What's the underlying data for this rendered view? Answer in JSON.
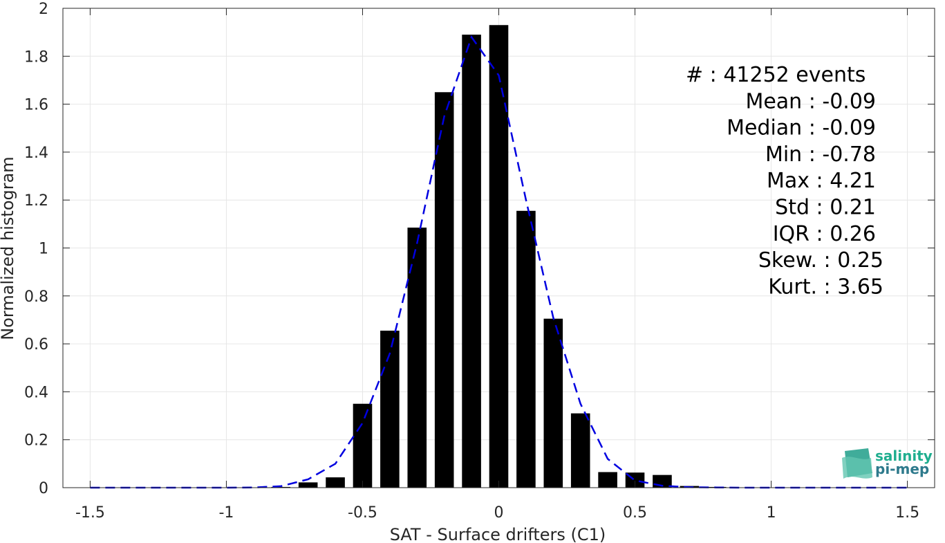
{
  "chart_data": {
    "type": "bar",
    "xlabel": "SAT - Surface drifters (C1)",
    "ylabel": "Normalized histogram",
    "xlim": [
      -1.6,
      1.6
    ],
    "ylim": [
      0,
      2
    ],
    "xticks": [
      -1.5,
      -1,
      -0.5,
      0,
      0.5,
      1,
      1.5
    ],
    "xtick_labels": [
      "-1.5",
      "-1",
      "-0.5",
      "0",
      "0.5",
      "1",
      "1.5"
    ],
    "yticks": [
      0,
      0.2,
      0.4,
      0.6,
      0.8,
      1,
      1.2,
      1.4,
      1.6,
      1.8,
      2
    ],
    "ytick_labels": [
      "0",
      "0.2",
      "0.4",
      "0.6",
      "0.8",
      "1",
      "1.2",
      "1.4",
      "1.6",
      "1.8",
      "2"
    ],
    "grid": true,
    "bar_width": 0.07,
    "bars": {
      "x": [
        -1.5,
        -1.4,
        -1.3,
        -1.2,
        -1.1,
        -1.0,
        -0.9,
        -0.8,
        -0.7,
        -0.6,
        -0.5,
        -0.4,
        -0.3,
        -0.2,
        -0.1,
        0.0,
        0.1,
        0.2,
        0.3,
        0.4,
        0.5,
        0.6,
        0.7,
        0.8,
        0.9,
        1.0,
        1.1,
        1.2,
        1.3,
        1.4,
        1.5
      ],
      "values": [
        0,
        0,
        0,
        0,
        0,
        0,
        0,
        0.003,
        0.022,
        0.043,
        0.35,
        0.655,
        1.085,
        1.65,
        1.89,
        1.93,
        1.155,
        0.705,
        0.31,
        0.065,
        0.063,
        0.053,
        0.007,
        0.003,
        0.001,
        0,
        0,
        0,
        0,
        0,
        0
      ],
      "color": "#000000"
    },
    "fit": {
      "style": "dashed",
      "color": "#0000e0",
      "x": [
        -1.5,
        -1.4,
        -1.3,
        -1.2,
        -1.1,
        -1.0,
        -0.9,
        -0.8,
        -0.7,
        -0.6,
        -0.5,
        -0.4,
        -0.3,
        -0.2,
        -0.1,
        0.0,
        0.1,
        0.2,
        0.3,
        0.4,
        0.5,
        0.6,
        0.7,
        0.8,
        0.9,
        1.0,
        1.1,
        1.2,
        1.3,
        1.4,
        1.5
      ],
      "y": [
        0,
        0,
        0,
        0,
        0,
        0,
        0.001,
        0.006,
        0.035,
        0.1,
        0.27,
        0.56,
        1.02,
        1.55,
        1.88,
        1.72,
        1.2,
        0.71,
        0.35,
        0.12,
        0.03,
        0.008,
        0.002,
        0.001,
        0,
        0,
        0,
        0,
        0,
        0,
        0
      ]
    },
    "stats": [
      {
        "label": "#  ",
        "value": "41252 events"
      },
      {
        "label": "Mean",
        "value": "-0.09"
      },
      {
        "label": "Median",
        "value": "-0.09"
      },
      {
        "label": "Min",
        "value": "-0.78"
      },
      {
        "label": "Max",
        "value": "4.21"
      },
      {
        "label": "Std",
        "value": "0.21"
      },
      {
        "label": "IQR",
        "value": "0.26"
      },
      {
        "label": "Skew.",
        "value": "0.25"
      },
      {
        "label": "Kurt.",
        "value": "3.65"
      }
    ]
  },
  "logo": {
    "line1": "salinity",
    "line2": "pi-mep",
    "color1": "#1fae8f",
    "color2": "#2e7a8c"
  }
}
